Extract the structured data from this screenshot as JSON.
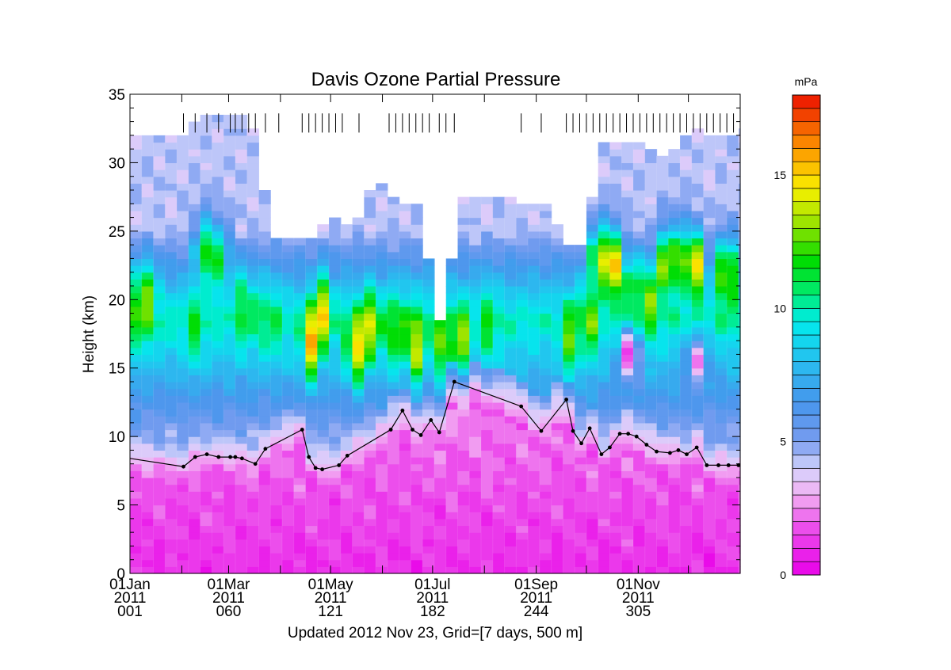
{
  "chart_data": {
    "type": "heatmap",
    "title": "Davis Ozone Partial Pressure",
    "ylabel": "Height (km)",
    "footer": "Updated 2012 Nov 23, Grid=[7 days, 500 m]",
    "colorbar_unit": "mPa",
    "colorbar_ticks": [
      "0",
      "5",
      "10",
      "15"
    ],
    "colorbar_range": [
      0,
      18
    ],
    "xlim": [
      1,
      366
    ],
    "ylim": [
      0,
      35
    ],
    "y_ticks": [
      "0",
      "5",
      "10",
      "15",
      "20",
      "25",
      "30",
      "35"
    ],
    "x_ticks": [
      {
        "day": 1,
        "lines": [
          "01Jan",
          "2011",
          "001"
        ]
      },
      {
        "day": 60,
        "lines": [
          "01Mar",
          "2011",
          "060"
        ]
      },
      {
        "day": 121,
        "lines": [
          "01May",
          "2011",
          "121"
        ]
      },
      {
        "day": 182,
        "lines": [
          "01Jul",
          "2011",
          "182"
        ]
      },
      {
        "day": 244,
        "lines": [
          "01Sep",
          "2011",
          "244"
        ]
      },
      {
        "day": 305,
        "lines": [
          "01Nov",
          "2011",
          "305"
        ]
      }
    ],
    "sounding_days": [
      33,
      40,
      47,
      54,
      61,
      64,
      68,
      72,
      76,
      82,
      90,
      104,
      108,
      112,
      116,
      120,
      124,
      128,
      138,
      156,
      160,
      164,
      168,
      172,
      176,
      180,
      186,
      190,
      195,
      235,
      247,
      262,
      266,
      270,
      274,
      278,
      282,
      286,
      290,
      294,
      298,
      302,
      306,
      310,
      314,
      318,
      322,
      326,
      330,
      334,
      338,
      342,
      346,
      350,
      354,
      358,
      362,
      366
    ],
    "tropopause": {
      "x": [
        1,
        33,
        40,
        47,
        54,
        61,
        64,
        68,
        76,
        82,
        104,
        108,
        112,
        116,
        126,
        131,
        157,
        164,
        170,
        175,
        181,
        186,
        195,
        235,
        247,
        262,
        266,
        271,
        276,
        283,
        288,
        294,
        299,
        304,
        310,
        316,
        324,
        329,
        334,
        340,
        346,
        353,
        359,
        365
      ],
      "y": [
        8.4,
        7.8,
        8.5,
        8.7,
        8.5,
        8.5,
        8.5,
        8.4,
        8.0,
        9.1,
        10.5,
        8.5,
        7.7,
        7.6,
        7.9,
        8.6,
        10.5,
        11.9,
        10.5,
        10.1,
        11.2,
        10.3,
        14.0,
        12.2,
        10.4,
        12.7,
        10.4,
        9.5,
        10.6,
        8.7,
        9.2,
        10.2,
        10.2,
        10.0,
        9.4,
        8.9,
        8.8,
        9.0,
        8.7,
        9.2,
        7.9,
        7.9,
        7.9,
        7.9
      ]
    },
    "data_top": {
      "x": [
        1,
        8,
        15,
        22,
        29,
        36,
        43,
        50,
        57,
        64,
        71,
        78,
        85,
        92,
        99,
        106,
        113,
        120,
        127,
        134,
        141,
        148,
        155,
        162,
        169,
        176,
        183,
        190,
        197,
        204,
        211,
        218,
        225,
        232,
        239,
        246,
        253,
        260,
        267,
        274,
        281,
        288,
        295,
        302,
        309,
        316,
        323,
        330,
        337,
        344,
        351,
        358,
        365
      ],
      "y": [
        31.8,
        31.8,
        31.8,
        31.8,
        31.8,
        32.2,
        33.3,
        33.3,
        33.3,
        33.3,
        33.3,
        31.5,
        24.5,
        24.3,
        24.3,
        24.3,
        24.3,
        25.8,
        25.3,
        25.1,
        26.6,
        28.8,
        27.6,
        27.0,
        27.0,
        26.6,
        18.7,
        18.2,
        27.3,
        27.3,
        27.3,
        27.3,
        27.3,
        27.1,
        26.8,
        26.8,
        26.7,
        23.8,
        23.8,
        23.8,
        31.2,
        31.4,
        31.6,
        31.4,
        31.2,
        30.4,
        30.4,
        31.1,
        32.4,
        31.8,
        31.8,
        31.8,
        32.1
      ]
    },
    "features": [
      {
        "x": 1,
        "y": 19.5,
        "v": 14.0
      },
      {
        "x": 12,
        "y": 20,
        "v": 13.0
      },
      {
        "x": 40,
        "y": 18,
        "v": 11.5
      },
      {
        "x": 45,
        "y": 23.5,
        "v": 12.5
      },
      {
        "x": 55,
        "y": 23,
        "v": 11.8
      },
      {
        "x": 70,
        "y": 19.5,
        "v": 12.0
      },
      {
        "x": 85,
        "y": 18.5,
        "v": 11.5
      },
      {
        "x": 110,
        "y": 17,
        "v": 16.0
      },
      {
        "x": 116,
        "y": 19,
        "v": 15.0
      },
      {
        "x": 136,
        "y": 16.5,
        "v": 15.5
      },
      {
        "x": 146,
        "y": 18,
        "v": 14.5
      },
      {
        "x": 162,
        "y": 17.5,
        "v": 13.5
      },
      {
        "x": 172,
        "y": 16.5,
        "v": 14.0
      },
      {
        "x": 185,
        "y": 17,
        "v": 13.0
      },
      {
        "x": 198,
        "y": 16.8,
        "v": 14.5
      },
      {
        "x": 215,
        "y": 18,
        "v": 11.5
      },
      {
        "x": 265,
        "y": 17,
        "v": 13.0
      },
      {
        "x": 275,
        "y": 18.5,
        "v": 13.5
      },
      {
        "x": 282,
        "y": 23,
        "v": 16.5
      },
      {
        "x": 292,
        "y": 22.5,
        "v": 15.0
      },
      {
        "x": 302,
        "y": 21,
        "v": 13.0
      },
      {
        "x": 310,
        "y": 20,
        "v": 14.0
      },
      {
        "x": 320,
        "y": 22.5,
        "v": 13.0
      },
      {
        "x": 330,
        "y": 23,
        "v": 16.5
      },
      {
        "x": 340,
        "y": 22.5,
        "v": 14.5
      },
      {
        "x": 358,
        "y": 22,
        "v": 15.5
      }
    ],
    "low_features": [
      {
        "x": 300,
        "y": 16,
        "v": 0.7
      },
      {
        "x": 340,
        "y": 15.5,
        "v": 2.5
      }
    ]
  }
}
